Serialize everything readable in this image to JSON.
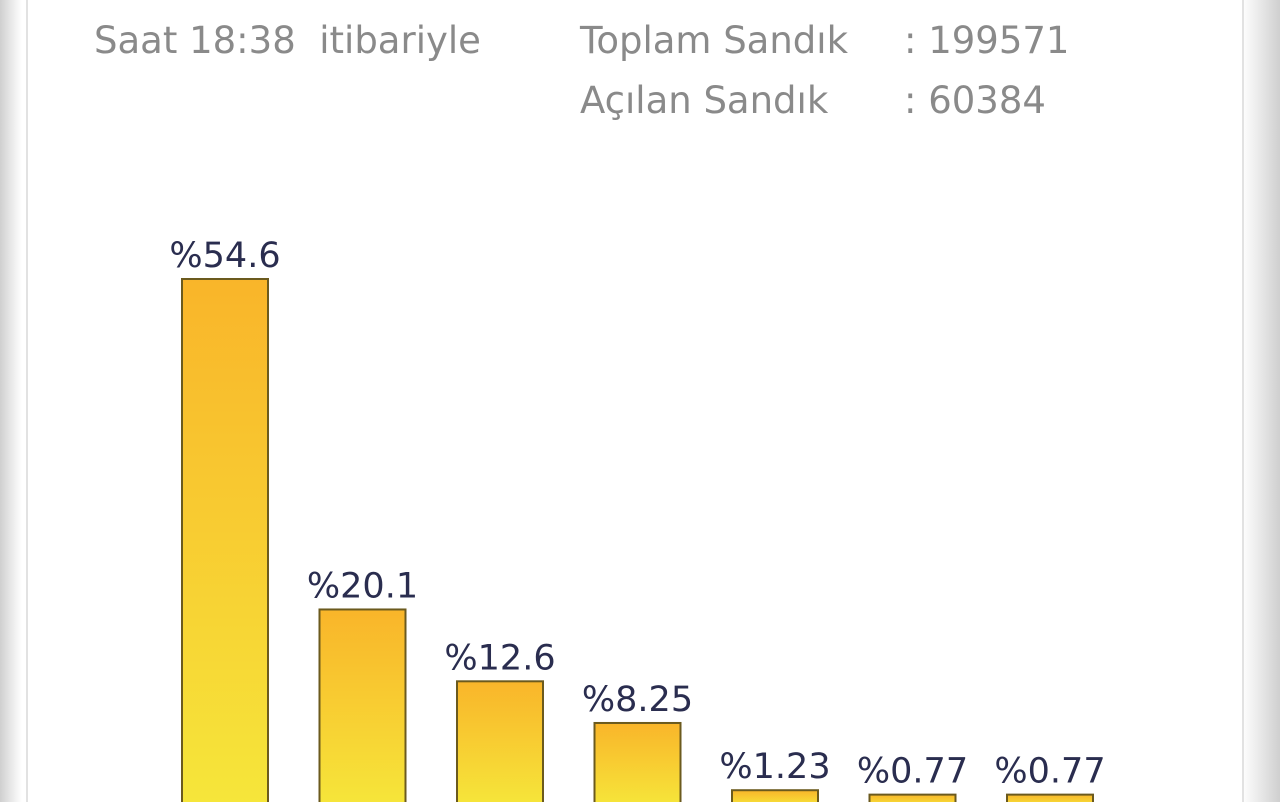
{
  "header": {
    "time_text": "Saat 18:38  itibariyle",
    "total_label": "Toplam Sandık",
    "total_value": ": 199571",
    "opened_label": "Açılan Sandık",
    "opened_value": ": 60384"
  },
  "chart_data": {
    "type": "bar",
    "title": "",
    "xlabel": "",
    "ylabel": "",
    "ylim": [
      0,
      60
    ],
    "grid": false,
    "legend": "none",
    "values": [
      54.6,
      20.1,
      12.6,
      8.25,
      1.23,
      0.77,
      0.77
    ],
    "data_labels": [
      "%54.6",
      "%20.1",
      "%12.6",
      "%8.25",
      "%1.23",
      "%0.77",
      "%0.77"
    ],
    "colors": {
      "bar_top": "#f9b52a",
      "bar_bottom": "#f6e63a",
      "bar_stroke": "#6b5a1e",
      "label": "#2a2d4f"
    }
  }
}
